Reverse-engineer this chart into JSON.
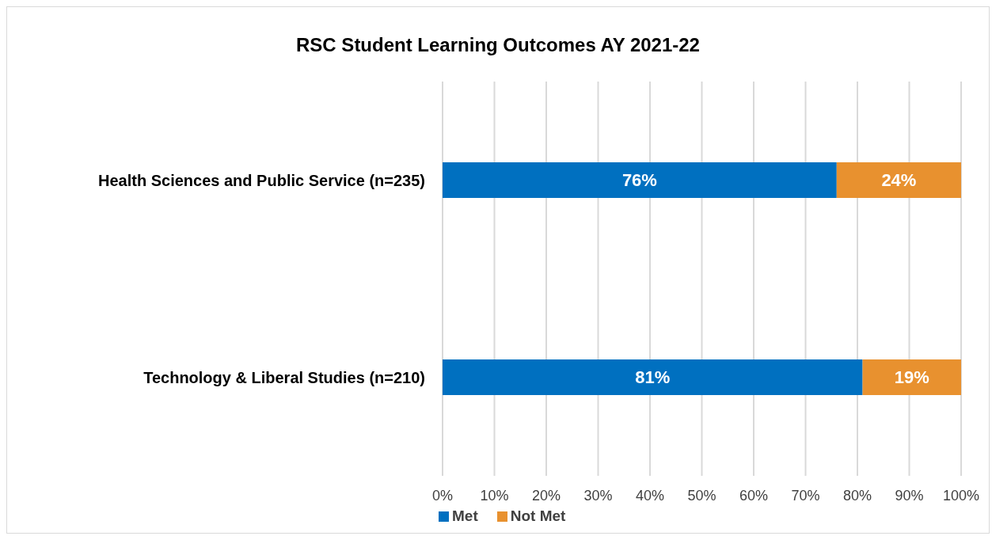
{
  "chart_data": {
    "type": "bar",
    "title": "RSC Student Learning Outcomes AY 2021-22",
    "orientation": "horizontal",
    "stacked": true,
    "categories": [
      "Health Sciences and Public Service (n=235)",
      "Technology & Liberal Studies (n=210)"
    ],
    "series": [
      {
        "name": "Met",
        "color": "#0070c0",
        "values": [
          76,
          81
        ],
        "value_labels": [
          "76%",
          "81%"
        ]
      },
      {
        "name": "Not Met",
        "color": "#e8912f",
        "values": [
          24,
          19
        ],
        "value_labels": [
          "24%",
          "19%"
        ]
      }
    ],
    "xlim": [
      0,
      100
    ],
    "xticks": [
      {
        "value": 0,
        "label": "0%"
      },
      {
        "value": 10,
        "label": "10%"
      },
      {
        "value": 20,
        "label": "20%"
      },
      {
        "value": 30,
        "label": "30%"
      },
      {
        "value": 40,
        "label": "40%"
      },
      {
        "value": 50,
        "label": "50%"
      },
      {
        "value": 60,
        "label": "60%"
      },
      {
        "value": 70,
        "label": "70%"
      },
      {
        "value": 80,
        "label": "80%"
      },
      {
        "value": 90,
        "label": "90%"
      },
      {
        "value": 100,
        "label": "100%"
      }
    ],
    "grid": "x",
    "legend": "bottom"
  }
}
